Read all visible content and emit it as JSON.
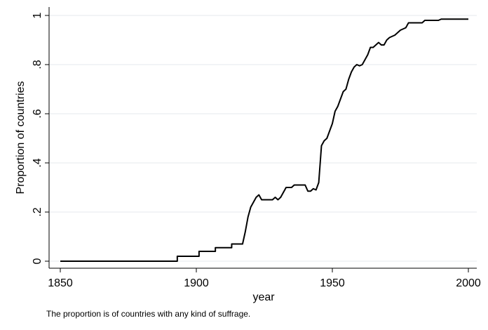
{
  "chart_data": {
    "type": "line",
    "x_label": "year",
    "y_label": "Proportion of countries",
    "note": "The proportion is of countries with any kind of suffrage.",
    "x": [
      1850,
      1893,
      1893,
      1901,
      1901,
      1907,
      1907,
      1913,
      1913,
      1917,
      1918,
      1919,
      1920,
      1921,
      1922,
      1923,
      1924,
      1926,
      1928,
      1929,
      1930,
      1931,
      1932,
      1933,
      1935,
      1936,
      1940,
      1941,
      1942,
      1943,
      1944,
      1945,
      1946,
      1947,
      1948,
      1949,
      1950,
      1951,
      1952,
      1953,
      1954,
      1955,
      1956,
      1957,
      1958,
      1959,
      1960,
      1961,
      1962,
      1963,
      1964,
      1965,
      1966,
      1967,
      1968,
      1969,
      1970,
      1971,
      1973,
      1975,
      1977,
      1978,
      1983,
      1984,
      1989,
      1990,
      2000
    ],
    "series": [
      {
        "name": "Proportion of countries",
        "color": "#000000",
        "values": [
          0,
          0,
          0.02,
          0.02,
          0.04,
          0.04,
          0.055,
          0.055,
          0.07,
          0.07,
          0.12,
          0.18,
          0.22,
          0.24,
          0.26,
          0.27,
          0.25,
          0.25,
          0.25,
          0.26,
          0.25,
          0.26,
          0.28,
          0.3,
          0.3,
          0.31,
          0.31,
          0.285,
          0.285,
          0.295,
          0.29,
          0.32,
          0.47,
          0.49,
          0.5,
          0.53,
          0.56,
          0.61,
          0.63,
          0.66,
          0.69,
          0.7,
          0.74,
          0.77,
          0.79,
          0.8,
          0.795,
          0.8,
          0.82,
          0.84,
          0.87,
          0.87,
          0.88,
          0.89,
          0.88,
          0.88,
          0.9,
          0.91,
          0.92,
          0.94,
          0.95,
          0.97,
          0.97,
          0.98,
          0.98,
          0.985,
          0.985
        ]
      }
    ],
    "xlim": [
      1850,
      2000
    ],
    "xticks": [
      1850,
      1900,
      1950,
      2000
    ],
    "ylim": [
      0,
      1
    ],
    "yticks": [
      0,
      {
        "value": 0.2,
        "label": ".2"
      },
      {
        "value": 0.4,
        "label": ".4"
      },
      {
        "value": 0.6,
        "label": ".6"
      },
      {
        "value": 0.8,
        "label": ".8"
      },
      1
    ],
    "grid": true
  }
}
